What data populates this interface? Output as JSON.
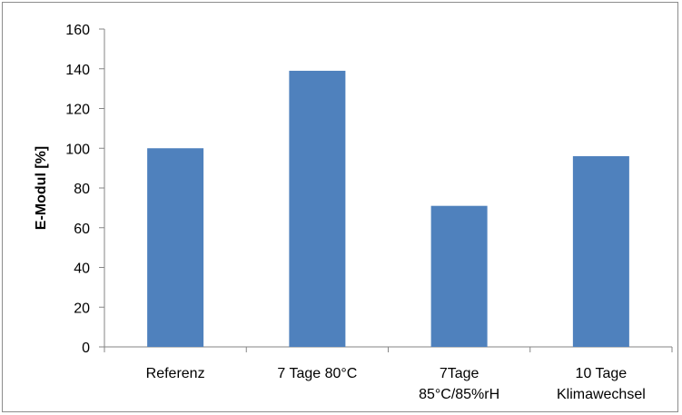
{
  "chart_data": {
    "type": "bar",
    "categories": [
      [
        "Referenz"
      ],
      [
        "7 Tage 80°C"
      ],
      [
        "7Tage",
        "85°C/85%rH"
      ],
      [
        "10 Tage",
        "Klimawechsel"
      ]
    ],
    "values": [
      100,
      139,
      71,
      96
    ],
    "title": "",
    "xlabel": "",
    "ylabel": "E-Modul  [%]",
    "ylim": [
      0,
      160
    ],
    "yticks": [
      "0",
      "20",
      "40",
      "60",
      "80",
      "100",
      "120",
      "140",
      "160"
    ],
    "grid": false,
    "legend": "none",
    "bar_color": "#4f81bd",
    "axis_color": "#868686"
  }
}
